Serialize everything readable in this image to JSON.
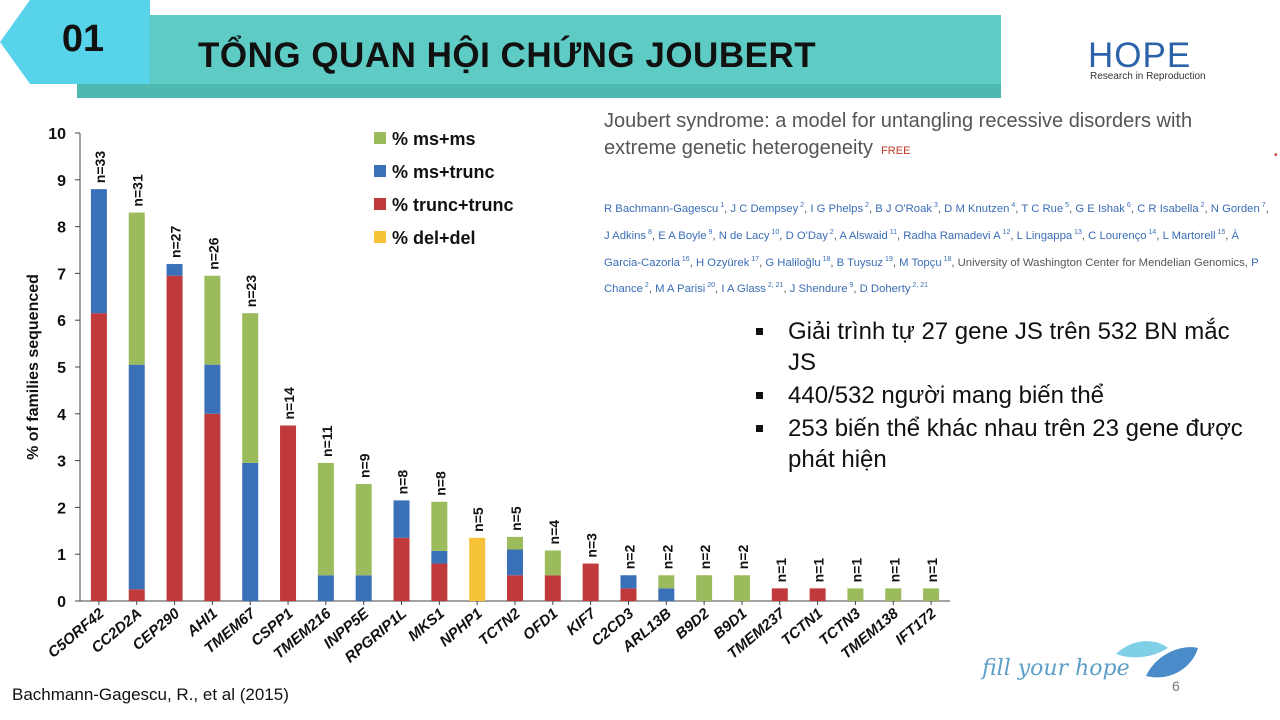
{
  "header": {
    "number": "01",
    "title": "TỔNG QUAN HỘI CHỨNG JOUBERT",
    "band_color": "#5ecbc4",
    "tab_color": "#57d3ea"
  },
  "logo": {
    "word": "HOPE",
    "subtitle": "Research in Reproduction",
    "color": "#2b63a8"
  },
  "paper": {
    "title": "Joubert syndrome: a model for untangling recessive disorders with extreme genetic heterogeneity",
    "free_badge": "FREE",
    "authors": [
      {
        "name": "R Bachmann-Gagescu",
        "sup": "1"
      },
      {
        "name": "J C Dempsey",
        "sup": "2"
      },
      {
        "name": "I G Phelps",
        "sup": "2"
      },
      {
        "name": "B J O'Roak",
        "sup": "3"
      },
      {
        "name": "D M Knutzen",
        "sup": "4"
      },
      {
        "name": "T C Rue",
        "sup": "5"
      },
      {
        "name": "G E Ishak",
        "sup": "6"
      },
      {
        "name": "C R Isabella",
        "sup": "2"
      },
      {
        "name": "N Gorden",
        "sup": "7"
      },
      {
        "name": "J Adkins",
        "sup": "8"
      },
      {
        "name": "E A Boyle",
        "sup": "9"
      },
      {
        "name": "N de Lacy",
        "sup": "10"
      },
      {
        "name": "D O'Day",
        "sup": "2"
      },
      {
        "name": "A Alswaid",
        "sup": "11"
      },
      {
        "name": "Radha Ramadevi A",
        "sup": "12"
      },
      {
        "name": "L Lingappa",
        "sup": "13"
      },
      {
        "name": "C Lourenço",
        "sup": "14"
      },
      {
        "name": "L Martorell",
        "sup": "15"
      },
      {
        "name": "À Garcia-Cazorla",
        "sup": "16"
      },
      {
        "name": "H Ozyürek",
        "sup": "17"
      },
      {
        "name": "G Haliloğlu",
        "sup": "18"
      },
      {
        "name": "B Tuysuz",
        "sup": "19"
      },
      {
        "name": "M Topçu",
        "sup": "18"
      },
      {
        "name": "University of Washington Center for Mendelian Genomics",
        "sup": "",
        "plain": true
      },
      {
        "name": "P Chance",
        "sup": "2"
      },
      {
        "name": "M A Parisi",
        "sup": "20"
      },
      {
        "name": "I A Glass",
        "sup": "2, 21"
      },
      {
        "name": "J Shendure",
        "sup": "9"
      },
      {
        "name": "D Doherty",
        "sup": "2, 21"
      }
    ]
  },
  "bullets": [
    "Giải trình tự 27 gene JS trên 532 BN mắc JS",
    "440/532 người mang biến thể",
    "253 biến thể khác nhau trên 23 gene được phát hiện"
  ],
  "citation": "Bachmann-Gagescu, R., et al (2015)",
  "footer": {
    "slogan": "fill your hope",
    "page_number": "6"
  },
  "chart_data": {
    "type": "bar",
    "stacked": true,
    "ylabel": "% of families sequenced",
    "xlabel": "",
    "ylim": [
      0,
      10
    ],
    "yticks": [
      "0",
      "1",
      "2",
      "3",
      "4",
      "5",
      "6",
      "7",
      "8",
      "9",
      "10"
    ],
    "legend_position": "top-center",
    "categories": [
      "C5ORF42",
      "CC2D2A",
      "CEP290",
      "AHI1",
      "TMEM67",
      "CSPP1",
      "TMEM216",
      "INPP5E",
      "RPGRIP1L",
      "MKS1",
      "NPHP1",
      "TCTN2",
      "OFD1",
      "KIF7",
      "C2CD3",
      "ARL13B",
      "B9D2",
      "B9D1",
      "TMEM237",
      "TCTN1",
      "TCTN3",
      "TMEM138",
      "IFT172"
    ],
    "n_labels": [
      "n=33",
      "n=31",
      "n=27",
      "n=26",
      "n=23",
      "n=14",
      "n=11",
      "n=9",
      "n=8",
      "n=8",
      "n=5",
      "n=5",
      "n=4",
      "n=3",
      "n=2",
      "n=2",
      "n=2",
      "n=2",
      "n=1",
      "n=1",
      "n=1",
      "n=1",
      "n=1"
    ],
    "series": [
      {
        "name": "% trunc+trunc",
        "color": "#c0393b",
        "values": [
          6.15,
          0.25,
          6.95,
          4.0,
          0,
          3.75,
          0,
          0,
          1.35,
          0.8,
          0,
          0.55,
          0.55,
          0.8,
          0.27,
          0,
          0,
          0,
          0.27,
          0.27,
          0,
          0,
          0
        ]
      },
      {
        "name": "% ms+trunc",
        "color": "#3a70b8",
        "values": [
          2.65,
          4.8,
          0.25,
          1.05,
          2.95,
          0,
          0.55,
          0.55,
          0.8,
          0.27,
          0,
          0.55,
          0,
          0,
          0.28,
          0.27,
          0,
          0,
          0,
          0,
          0,
          0,
          0
        ]
      },
      {
        "name": "% ms+ms",
        "color": "#9bbb5c",
        "values": [
          0,
          3.25,
          0,
          1.9,
          3.2,
          0,
          2.4,
          1.95,
          0,
          1.05,
          0,
          0.27,
          0.53,
          0,
          0,
          0.28,
          0.55,
          0.55,
          0,
          0,
          0.27,
          0.27,
          0.27
        ]
      },
      {
        "name": "% del+del",
        "color": "#f6c338",
        "values": [
          0,
          0,
          0,
          0,
          0,
          0,
          0,
          0,
          0,
          0,
          1.35,
          0,
          0,
          0,
          0,
          0,
          0,
          0,
          0,
          0,
          0,
          0,
          0
        ]
      }
    ],
    "legend_order": [
      "% ms+ms",
      "% ms+trunc",
      "% trunc+trunc",
      "% del+del"
    ]
  }
}
